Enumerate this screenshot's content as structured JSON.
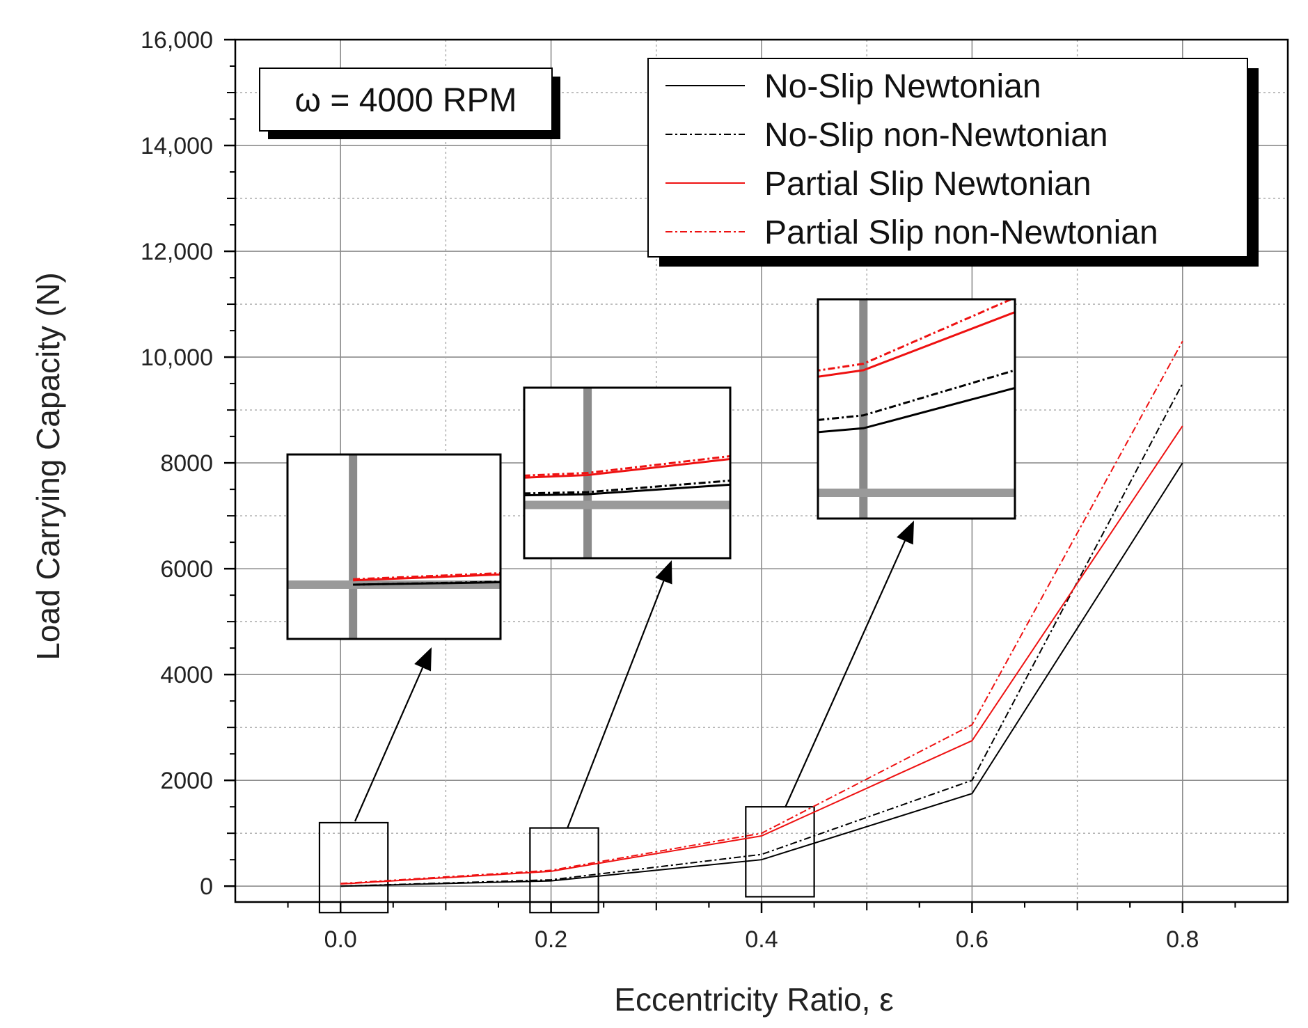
{
  "chart_data": {
    "type": "line",
    "title": "",
    "xlabel": "Eccentricity Ratio, ε",
    "ylabel": "Load Carrying Capacity (N)",
    "xlim": [
      -0.1,
      0.9
    ],
    "ylim": [
      -300,
      16000
    ],
    "x_ticks": [
      0.0,
      0.2,
      0.4,
      0.6,
      0.8
    ],
    "x_tick_labels": [
      "0.0",
      "0.2",
      "0.4",
      "0.6",
      "0.8"
    ],
    "y_ticks": [
      0,
      2000,
      4000,
      6000,
      8000,
      10000,
      12000,
      14000,
      16000
    ],
    "y_tick_labels": [
      "0",
      "2000",
      "4000",
      "6000",
      "8000",
      "10,000",
      "12,000",
      "14,000",
      "16,000"
    ],
    "grid": true,
    "legend_position": "top-right",
    "annotation": "ω = 4000 RPM",
    "x": [
      0.0,
      0.2,
      0.4,
      0.6,
      0.8
    ],
    "series": [
      {
        "name": "No-Slip Newtonian",
        "values": [
          0,
          100,
          500,
          1750,
          8000
        ],
        "color": "#000000",
        "dash": "solid"
      },
      {
        "name": "No-Slip non-Newtonian",
        "values": [
          0,
          120,
          600,
          2000,
          9500
        ],
        "color": "#000000",
        "dash": "dashdot"
      },
      {
        "name": "Partial Slip Newtonian",
        "values": [
          40,
          280,
          950,
          2750,
          8700
        ],
        "color": "#ee1111",
        "dash": "solid"
      },
      {
        "name": "Partial Slip non-Newtonian",
        "values": [
          50,
          300,
          1000,
          3050,
          10300
        ],
        "color": "#ee1111",
        "dash": "dashdot"
      }
    ],
    "zoom_regions": [
      {
        "x_range": [
          -0.02,
          0.045
        ],
        "y_range": [
          -500,
          1200
        ]
      },
      {
        "x_range": [
          0.18,
          0.245
        ],
        "y_range": [
          -500,
          1100
        ]
      },
      {
        "x_range": [
          0.385,
          0.45
        ],
        "y_range": [
          -200,
          1500
        ]
      }
    ]
  }
}
